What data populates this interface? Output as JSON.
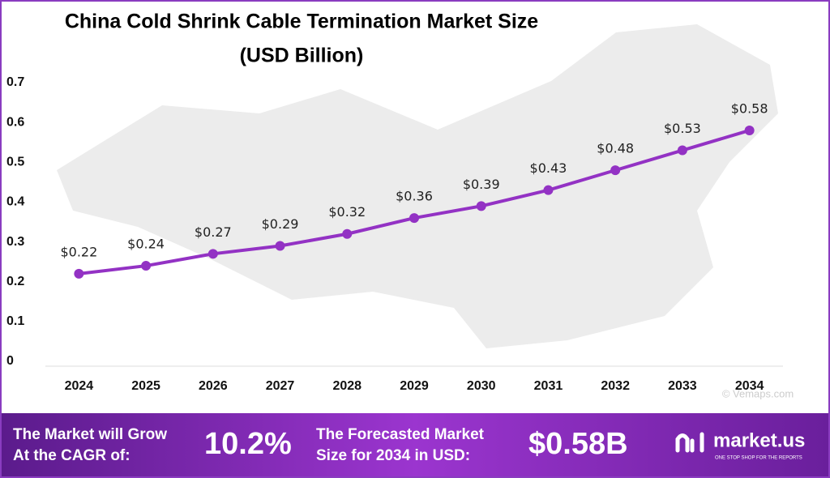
{
  "chart_data": {
    "type": "line",
    "title": "China Cold Shrink Cable Termination Market Size",
    "subtitle": "(USD Billion)",
    "categories": [
      "2024",
      "2025",
      "2026",
      "2027",
      "2028",
      "2029",
      "2030",
      "2031",
      "2032",
      "2033",
      "2034"
    ],
    "values": [
      0.22,
      0.24,
      0.27,
      0.29,
      0.32,
      0.36,
      0.39,
      0.43,
      0.48,
      0.53,
      0.58
    ],
    "value_labels": [
      "$0.22",
      "$0.24",
      "$0.27",
      "$0.29",
      "$0.32",
      "$0.36",
      "$0.39",
      "$0.43",
      "$0.48",
      "$0.53",
      "$0.58"
    ],
    "color": "#9332c4",
    "ylim": [
      0,
      0.7
    ],
    "yticks": [
      0,
      0.1,
      0.2,
      0.3,
      0.4,
      0.5,
      0.6,
      0.7
    ],
    "grid": false,
    "watermark": "© Vemaps.com"
  },
  "footer": {
    "cagr_label": [
      "The Market will Grow",
      "At the CAGR of:"
    ],
    "cagr_value": "10.2%",
    "forecast_label": [
      "The Forecasted Market",
      "Size for 2034 in USD:"
    ],
    "forecast_value": "$0.58B",
    "brand": "market.us",
    "tagline": "ONE STOP SHOP FOR THE REPORTS"
  }
}
